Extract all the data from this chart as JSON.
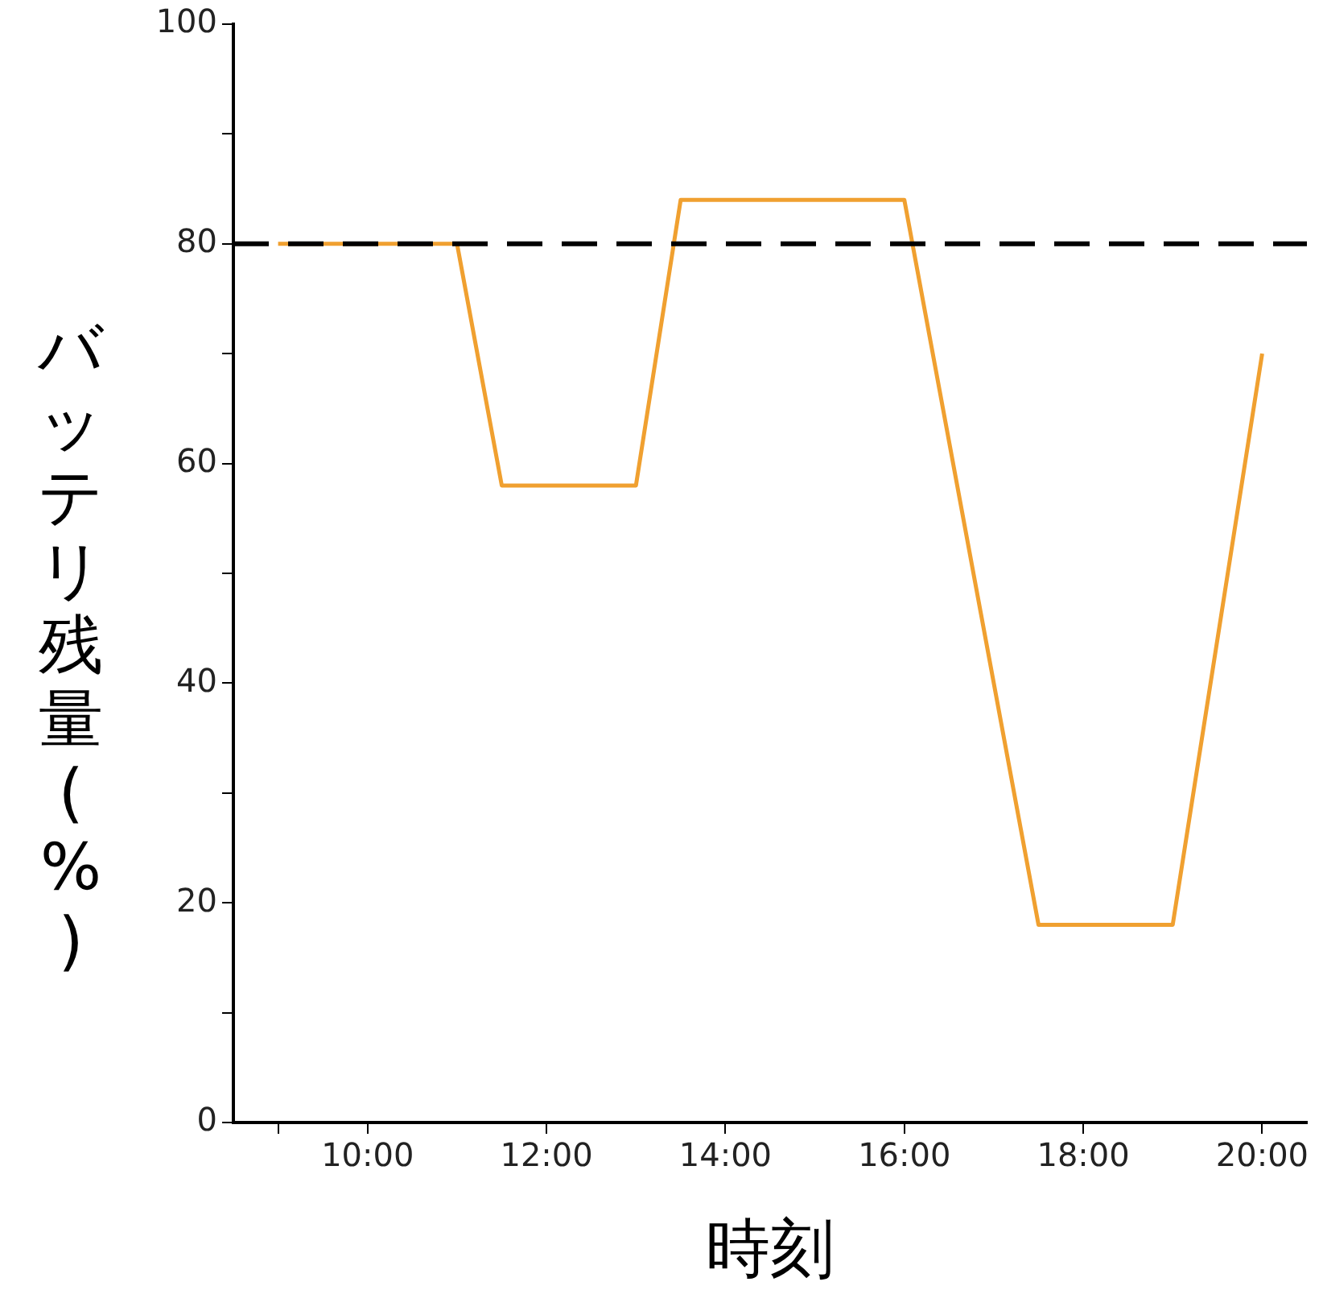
{
  "chart_data": {
    "type": "line",
    "xlabel": "時刻",
    "ylabel": "バッテリ残量(%)",
    "x": [
      9,
      11,
      11.5,
      13,
      13.5,
      16,
      17.5,
      19,
      20
    ],
    "series": [
      {
        "color": "#f0a030",
        "values": [
          80,
          80,
          58,
          58,
          84,
          84,
          18,
          18,
          70
        ]
      }
    ],
    "xlim": [
      8.5,
      20.5
    ],
    "xticks": [
      {
        "value": 9,
        "label": null
      },
      {
        "value": 10,
        "label": "10:00"
      },
      {
        "value": 12,
        "label": "12:00"
      },
      {
        "value": 14,
        "label": "14:00"
      },
      {
        "value": 16,
        "label": "16:00"
      },
      {
        "value": 18,
        "label": "18:00"
      },
      {
        "value": 20,
        "label": "20:00"
      }
    ],
    "ylim": [
      0,
      100
    ],
    "yticks": [
      0,
      {
        "value": 10,
        "label": null
      },
      20,
      {
        "value": 30,
        "label": null
      },
      40,
      {
        "value": 50,
        "label": null
      },
      60,
      {
        "value": 70,
        "label": null
      },
      80,
      {
        "value": 90,
        "label": null
      },
      100
    ],
    "ref_lines": [
      {
        "axis": "y",
        "value": 80,
        "color": "#000000",
        "line_style": "dashed"
      }
    ],
    "grid": false,
    "legend": false,
    "marker": "none",
    "line_style": "solid"
  }
}
